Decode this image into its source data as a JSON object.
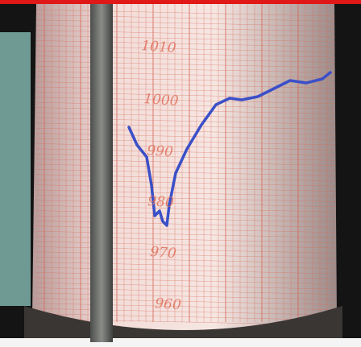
{
  "scale_labels": [
    "1010",
    "1000",
    "990",
    "980",
    "970",
    "960"
  ]
}
